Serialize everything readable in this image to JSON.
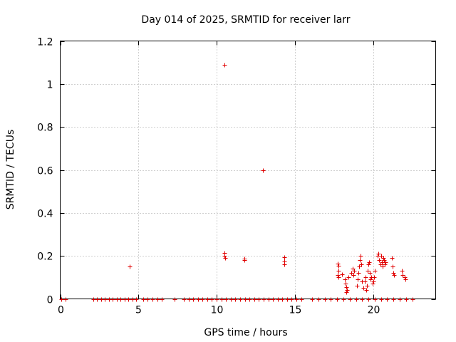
{
  "chart_data": {
    "type": "scatter",
    "title": "Day 014 of 2025, SRMTID for receiver larr",
    "xlabel": "GPS time / hours",
    "ylabel": "SRMTID / TECUs",
    "xlim": [
      0,
      24
    ],
    "ylim": [
      0,
      1.2
    ],
    "xticks": [
      0,
      5,
      10,
      15,
      20
    ],
    "yticks": [
      0,
      0.2,
      0.4,
      0.6,
      0.8,
      1,
      1.2
    ],
    "xtick_labels": [
      "0",
      "5",
      "10",
      "15",
      "20"
    ],
    "ytick_labels": [
      "0",
      "0.2",
      "0.4",
      "0.6",
      "0.8",
      "1",
      "1.2"
    ],
    "grid": true,
    "marker": "+",
    "color": "#e00000",
    "series": [
      {
        "name": "SRMTID",
        "points": [
          [
            4.45,
            0.152
          ],
          [
            10.5,
            1.09
          ],
          [
            10.5,
            0.215
          ],
          [
            10.5,
            0.2
          ],
          [
            10.52,
            0.19
          ],
          [
            11.75,
            0.188
          ],
          [
            11.77,
            0.18
          ],
          [
            12.95,
            0.6
          ],
          [
            14.3,
            0.195
          ],
          [
            14.3,
            0.175
          ],
          [
            14.32,
            0.16
          ],
          [
            17.75,
            0.165
          ],
          [
            17.8,
            0.155
          ],
          [
            17.78,
            0.13
          ],
          [
            17.75,
            0.11
          ],
          [
            17.8,
            0.1
          ],
          [
            18.0,
            0.115
          ],
          [
            18.2,
            0.09
          ],
          [
            18.25,
            0.07
          ],
          [
            18.3,
            0.055
          ],
          [
            18.35,
            0.04
          ],
          [
            18.3,
            0.03
          ],
          [
            18.4,
            0.1
          ],
          [
            18.6,
            0.12
          ],
          [
            18.7,
            0.14
          ],
          [
            18.75,
            0.11
          ],
          [
            18.8,
            0.13
          ],
          [
            18.95,
            0.06
          ],
          [
            19.0,
            0.09
          ],
          [
            19.05,
            0.12
          ],
          [
            19.1,
            0.15
          ],
          [
            19.15,
            0.18
          ],
          [
            19.2,
            0.2
          ],
          [
            19.25,
            0.16
          ],
          [
            19.3,
            0.08
          ],
          [
            19.4,
            0.05
          ],
          [
            19.45,
            0.08
          ],
          [
            19.5,
            0.1
          ],
          [
            19.55,
            0.04
          ],
          [
            19.6,
            0.06
          ],
          [
            19.65,
            0.13
          ],
          [
            19.7,
            0.16
          ],
          [
            19.75,
            0.17
          ],
          [
            19.8,
            0.12
          ],
          [
            19.85,
            0.09
          ],
          [
            19.9,
            0.1
          ],
          [
            19.95,
            0.07
          ],
          [
            20.0,
            0.08
          ],
          [
            20.05,
            0.1
          ],
          [
            20.1,
            0.13
          ],
          [
            20.3,
            0.2
          ],
          [
            20.35,
            0.21
          ],
          [
            20.4,
            0.18
          ],
          [
            20.45,
            0.16
          ],
          [
            20.5,
            0.2
          ],
          [
            20.55,
            0.17
          ],
          [
            20.6,
            0.15
          ],
          [
            20.65,
            0.19
          ],
          [
            20.7,
            0.18
          ],
          [
            20.75,
            0.16
          ],
          [
            20.8,
            0.17
          ],
          [
            21.2,
            0.19
          ],
          [
            21.25,
            0.15
          ],
          [
            21.3,
            0.12
          ],
          [
            21.35,
            0.11
          ],
          [
            21.85,
            0.13
          ],
          [
            21.9,
            0.11
          ],
          [
            22.0,
            0.1
          ],
          [
            22.05,
            0.09
          ]
        ],
        "zero_line_hours": [
          0.05,
          0.35,
          2.1,
          2.35,
          2.6,
          2.85,
          3.1,
          3.35,
          3.6,
          3.85,
          4.1,
          4.35,
          4.6,
          4.85,
          5.3,
          5.6,
          5.9,
          6.2,
          6.5,
          7.3,
          7.9,
          8.2,
          8.5,
          8.8,
          9.1,
          9.4,
          9.7,
          10.0,
          10.3,
          10.6,
          10.9,
          11.2,
          11.5,
          11.8,
          12.1,
          12.4,
          12.7,
          13.0,
          13.3,
          13.6,
          13.9,
          14.2,
          14.5,
          14.8,
          15.1,
          15.4,
          16.1,
          16.5,
          16.9,
          17.3,
          17.7,
          18.1,
          18.5,
          18.9,
          19.3,
          19.7,
          20.1,
          20.5,
          20.9,
          21.3,
          21.7,
          22.1,
          22.5
        ]
      }
    ]
  }
}
